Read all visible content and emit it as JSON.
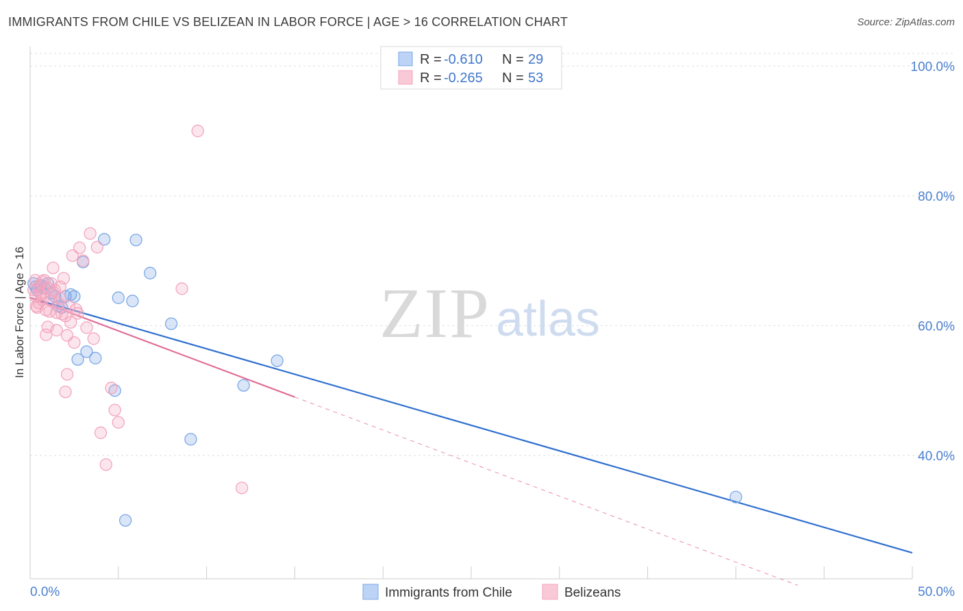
{
  "chart_data": {
    "type": "scatter",
    "title": "IMMIGRANTS FROM CHILE VS BELIZEAN IN LABOR FORCE | AGE > 16 CORRELATION CHART",
    "source": "Source: ZipAtlas.com",
    "ylabel": "In Labor Force | Age > 16",
    "xlabel": "",
    "xlim": [
      0,
      50
    ],
    "ylim": [
      21,
      103
    ],
    "x_tick_labels": [
      "0.0%",
      "50.0%"
    ],
    "y_tick_labels": [
      "100.0%",
      "80.0%",
      "60.0%",
      "40.0%"
    ],
    "y_ticks": [
      100,
      80,
      60,
      40
    ],
    "watermark": {
      "zip": "ZIP",
      "atlas": "atlas"
    },
    "legend": {
      "r_label": "R =",
      "n_label": "N =",
      "entries": [
        {
          "r": "-0.610",
          "n": "29"
        },
        {
          "r": "-0.265",
          "n": "53"
        }
      ]
    },
    "series": [
      {
        "name": "Immigrants from Chile",
        "color": "#7aa7e6",
        "line_color": "#2f6fcf",
        "trend": {
          "x0": 0,
          "y0": 64.3,
          "x1": 50,
          "y1": 25.0
        },
        "points": [
          {
            "x": 0.2,
            "y": 66.5
          },
          {
            "x": 0.3,
            "y": 66.0
          },
          {
            "x": 0.4,
            "y": 65.5
          },
          {
            "x": 0.6,
            "y": 66.2
          },
          {
            "x": 0.8,
            "y": 65.8
          },
          {
            "x": 1.0,
            "y": 66.5
          },
          {
            "x": 1.2,
            "y": 65.0
          },
          {
            "x": 1.4,
            "y": 64.5
          },
          {
            "x": 1.6,
            "y": 63.0
          },
          {
            "x": 1.8,
            "y": 62.8
          },
          {
            "x": 2.0,
            "y": 64.5
          },
          {
            "x": 2.3,
            "y": 64.8
          },
          {
            "x": 2.5,
            "y": 64.5
          },
          {
            "x": 2.7,
            "y": 54.8
          },
          {
            "x": 3.0,
            "y": 69.8
          },
          {
            "x": 3.2,
            "y": 56.0
          },
          {
            "x": 3.7,
            "y": 55.0
          },
          {
            "x": 4.2,
            "y": 73.3
          },
          {
            "x": 4.8,
            "y": 50.0
          },
          {
            "x": 5.0,
            "y": 64.3
          },
          {
            "x": 5.4,
            "y": 30.0
          },
          {
            "x": 5.8,
            "y": 63.8
          },
          {
            "x": 6.0,
            "y": 73.2
          },
          {
            "x": 6.8,
            "y": 68.1
          },
          {
            "x": 8.0,
            "y": 60.3
          },
          {
            "x": 9.1,
            "y": 42.5
          },
          {
            "x": 12.1,
            "y": 50.8
          },
          {
            "x": 14.0,
            "y": 54.6
          },
          {
            "x": 40.0,
            "y": 33.6
          }
        ]
      },
      {
        "name": "Belizeans",
        "color": "#f3a5be",
        "line_color": "#e06e98",
        "trend": {
          "x0": 0,
          "y0": 64.3,
          "x1": 15,
          "y1": 49.0
        },
        "trend_dashed": {
          "x0": 15,
          "y0": 49.0,
          "x1": 43.5,
          "y1": 20.0
        },
        "points": [
          {
            "x": 0.2,
            "y": 65.5
          },
          {
            "x": 0.3,
            "y": 64.5
          },
          {
            "x": 0.35,
            "y": 63.0
          },
          {
            "x": 0.5,
            "y": 66.0
          },
          {
            "x": 0.6,
            "y": 65.0
          },
          {
            "x": 0.7,
            "y": 64.0
          },
          {
            "x": 0.8,
            "y": 67.0
          },
          {
            "x": 0.9,
            "y": 58.6
          },
          {
            "x": 1.0,
            "y": 65.8
          },
          {
            "x": 1.1,
            "y": 62.2
          },
          {
            "x": 1.2,
            "y": 66.5
          },
          {
            "x": 1.3,
            "y": 68.9
          },
          {
            "x": 1.4,
            "y": 65.5
          },
          {
            "x": 1.5,
            "y": 59.3
          },
          {
            "x": 1.6,
            "y": 63.5
          },
          {
            "x": 1.7,
            "y": 66.0
          },
          {
            "x": 1.8,
            "y": 61.8
          },
          {
            "x": 1.9,
            "y": 67.3
          },
          {
            "x": 2.0,
            "y": 49.8
          },
          {
            "x": 2.1,
            "y": 52.5
          },
          {
            "x": 2.2,
            "y": 63.0
          },
          {
            "x": 2.4,
            "y": 70.8
          },
          {
            "x": 2.5,
            "y": 57.4
          },
          {
            "x": 2.6,
            "y": 62.5
          },
          {
            "x": 2.8,
            "y": 72.0
          },
          {
            "x": 3.0,
            "y": 70.0
          },
          {
            "x": 3.2,
            "y": 59.7
          },
          {
            "x": 3.4,
            "y": 74.2
          },
          {
            "x": 3.6,
            "y": 58.0
          },
          {
            "x": 3.8,
            "y": 72.1
          },
          {
            "x": 4.0,
            "y": 43.5
          },
          {
            "x": 4.3,
            "y": 38.6
          },
          {
            "x": 4.6,
            "y": 50.4
          },
          {
            "x": 4.8,
            "y": 47.0
          },
          {
            "x": 5.0,
            "y": 45.1
          },
          {
            "x": 0.4,
            "y": 62.8
          },
          {
            "x": 0.6,
            "y": 64.8
          },
          {
            "x": 1.0,
            "y": 59.8
          },
          {
            "x": 1.2,
            "y": 63.8
          },
          {
            "x": 1.5,
            "y": 62.0
          },
          {
            "x": 2.0,
            "y": 61.5
          },
          {
            "x": 2.3,
            "y": 60.5
          },
          {
            "x": 2.7,
            "y": 61.9
          },
          {
            "x": 0.9,
            "y": 62.4
          },
          {
            "x": 1.3,
            "y": 65.2
          },
          {
            "x": 1.7,
            "y": 64.2
          },
          {
            "x": 0.7,
            "y": 66.8
          },
          {
            "x": 0.3,
            "y": 67.0
          },
          {
            "x": 0.5,
            "y": 63.5
          },
          {
            "x": 8.6,
            "y": 65.7
          },
          {
            "x": 9.5,
            "y": 90.0
          },
          {
            "x": 12.0,
            "y": 35.0
          },
          {
            "x": 2.1,
            "y": 58.5
          }
        ]
      }
    ]
  }
}
